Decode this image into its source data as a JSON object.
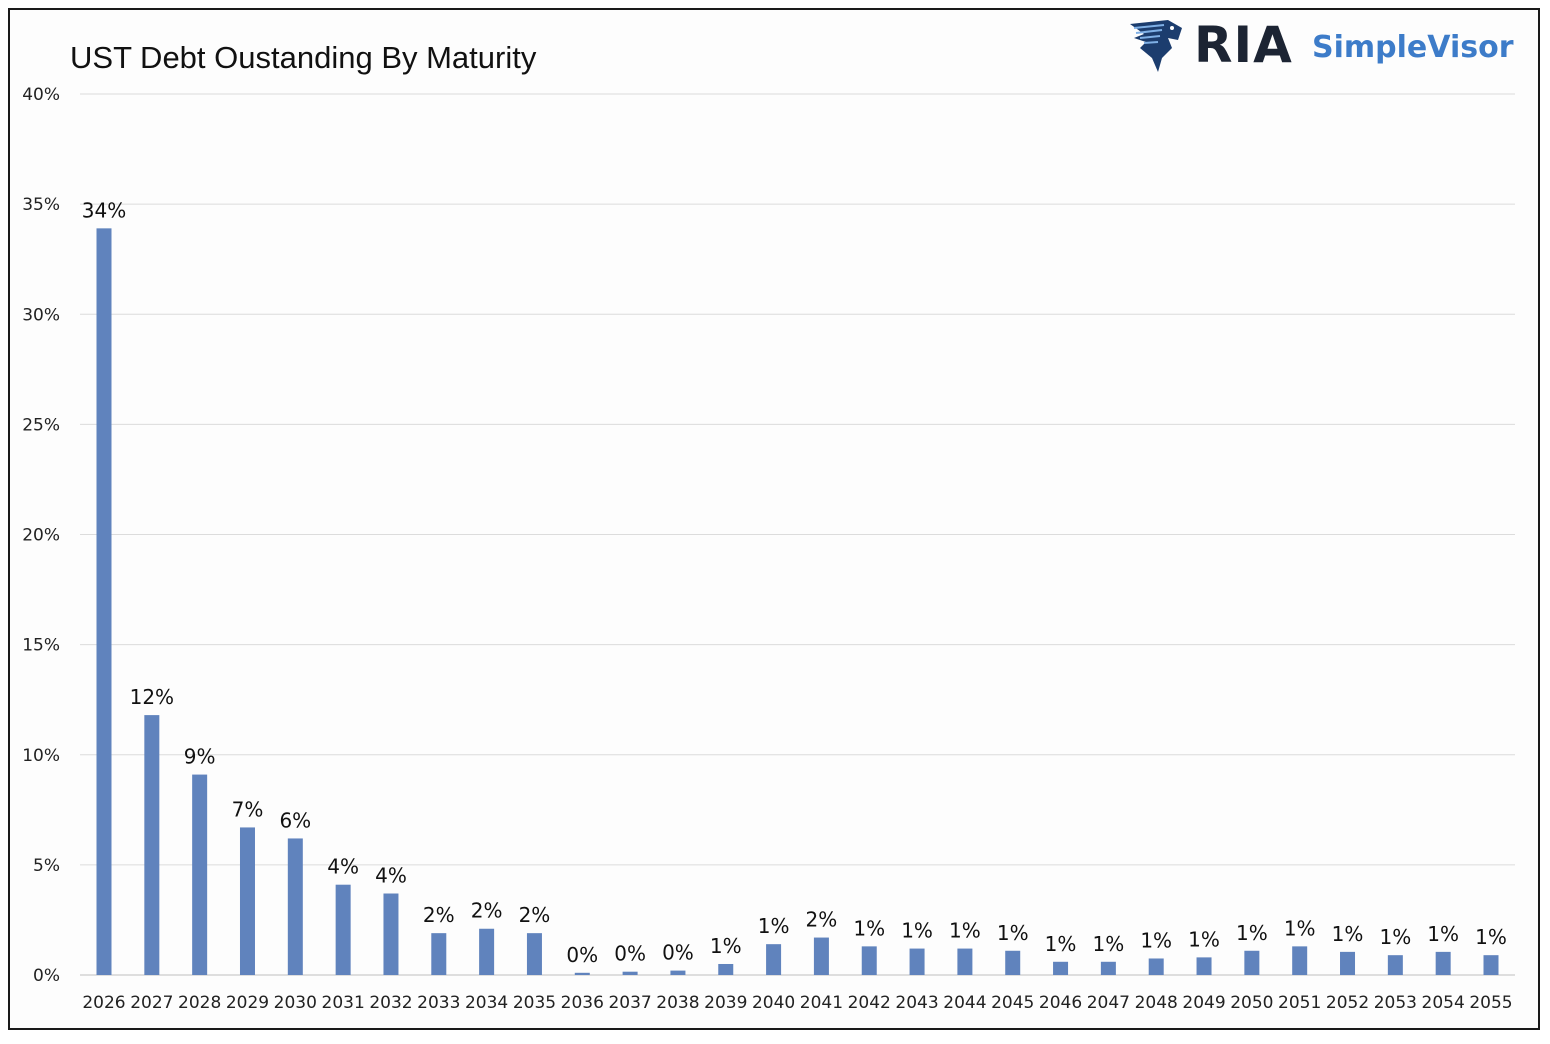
{
  "brand": {
    "icon": "eagle-icon",
    "name": "RIA",
    "product": "SimpleVisor",
    "colors": {
      "name": "#1c2433",
      "product": "#3d7cc9"
    }
  },
  "chart_data": {
    "type": "bar",
    "title": "UST Debt Oustanding By Maturity",
    "xlabel": "",
    "ylabel": "",
    "ylim": [
      0,
      40
    ],
    "yticks": [
      "0%",
      "5%",
      "10%",
      "15%",
      "20%",
      "25%",
      "30%",
      "35%",
      "40%"
    ],
    "ytick_values": [
      0,
      5,
      10,
      15,
      20,
      25,
      30,
      35,
      40
    ],
    "grid": true,
    "bar_color": "#6083bd",
    "categories": [
      "2026",
      "2027",
      "2028",
      "2029",
      "2030",
      "2031",
      "2032",
      "2033",
      "2034",
      "2035",
      "2036",
      "2037",
      "2038",
      "2039",
      "2040",
      "2041",
      "2042",
      "2043",
      "2044",
      "2045",
      "2046",
      "2047",
      "2048",
      "2049",
      "2050",
      "2051",
      "2052",
      "2053",
      "2054",
      "2055"
    ],
    "values": [
      33.9,
      11.8,
      9.1,
      6.7,
      6.2,
      4.1,
      3.7,
      1.9,
      2.1,
      1.9,
      0.1,
      0.15,
      0.2,
      0.5,
      1.4,
      1.7,
      1.3,
      1.2,
      1.2,
      1.1,
      0.6,
      0.6,
      0.75,
      0.8,
      1.1,
      1.3,
      1.05,
      0.9,
      1.05,
      0.9
    ],
    "data_labels": [
      "34%",
      "12%",
      "9%",
      "7%",
      "6%",
      "4%",
      "4%",
      "2%",
      "2%",
      "2%",
      "0%",
      "0%",
      "0%",
      "1%",
      "1%",
      "2%",
      "1%",
      "1%",
      "1%",
      "1%",
      "1%",
      "1%",
      "1%",
      "1%",
      "1%",
      "1%",
      "1%",
      "1%",
      "1%",
      "1%"
    ]
  }
}
